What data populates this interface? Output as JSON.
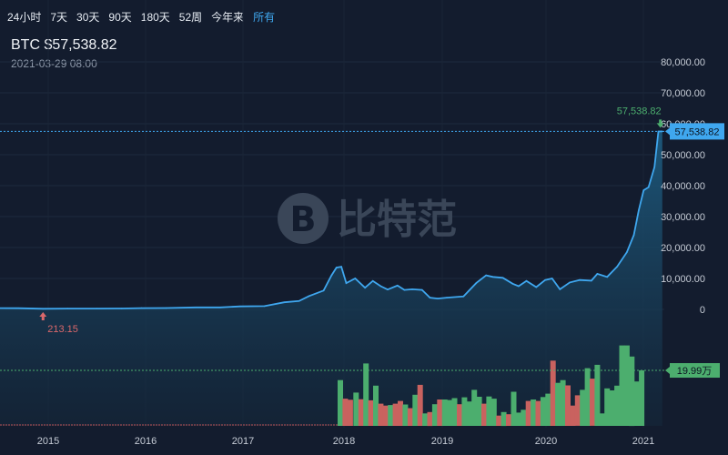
{
  "tabs": [
    {
      "label": "24小时",
      "active": false
    },
    {
      "label": "7天",
      "active": false
    },
    {
      "label": "30天",
      "active": false
    },
    {
      "label": "90天",
      "active": false
    },
    {
      "label": "180天",
      "active": false
    },
    {
      "label": "52周",
      "active": false
    },
    {
      "label": "今年来",
      "active": false
    },
    {
      "label": "所有",
      "active": true
    }
  ],
  "header": {
    "title": "BTC $57,538.82",
    "datetime": "2021-03-29 08:00"
  },
  "watermark": {
    "logo_glyph": "B",
    "text": "比特范"
  },
  "colors": {
    "background": "#131c2e",
    "line": "#3fa7ef",
    "area": "#1d5a7e",
    "up": "#4cae6e",
    "down": "#c9625f",
    "price_badge": "#3fa7ef",
    "volume_badge": "#4cae6e",
    "low_marker": "#d9686b",
    "high_marker": "#4cae6e"
  },
  "chart_data": {
    "type": "line",
    "title": "BTC $57,538.82",
    "x_tick_labels": [
      "2015",
      "2016",
      "2017",
      "2018",
      "2019",
      "2020",
      "2021"
    ],
    "y_tick_labels": [
      "0",
      "10,000.00",
      "20,000.00",
      "30,000.00",
      "40,000.00",
      "50,000.00",
      "60,000.00",
      "70,000.00",
      "80,000.00"
    ],
    "ylim": [
      0,
      80000
    ],
    "series": [
      {
        "values": [
          [
            2014.5,
            400
          ],
          [
            2014.7,
            380
          ],
          [
            2014.95,
            213
          ],
          [
            2015.2,
            250
          ],
          [
            2015.5,
            270
          ],
          [
            2015.75,
            300
          ],
          [
            2015.95,
            420
          ],
          [
            2016.2,
            430
          ],
          [
            2016.5,
            650
          ],
          [
            2016.75,
            640
          ],
          [
            2016.95,
            960
          ],
          [
            2017.2,
            1050
          ],
          [
            2017.4,
            2300
          ],
          [
            2017.55,
            2700
          ],
          [
            2017.65,
            4300
          ],
          [
            2017.8,
            6100
          ],
          [
            2017.88,
            11000
          ],
          [
            2017.93,
            13500
          ],
          [
            2017.98,
            13800
          ],
          [
            2018.03,
            8500
          ],
          [
            2018.12,
            10000
          ],
          [
            2018.22,
            7000
          ],
          [
            2018.3,
            9200
          ],
          [
            2018.38,
            7500
          ],
          [
            2018.45,
            6400
          ],
          [
            2018.55,
            7700
          ],
          [
            2018.62,
            6300
          ],
          [
            2018.7,
            6500
          ],
          [
            2018.8,
            6300
          ],
          [
            2018.88,
            3800
          ],
          [
            2018.96,
            3500
          ],
          [
            2019.05,
            3800
          ],
          [
            2019.22,
            4200
          ],
          [
            2019.35,
            8500
          ],
          [
            2019.45,
            11000
          ],
          [
            2019.52,
            10500
          ],
          [
            2019.62,
            10200
          ],
          [
            2019.72,
            8300
          ],
          [
            2019.78,
            7500
          ],
          [
            2019.86,
            9200
          ],
          [
            2019.96,
            7200
          ],
          [
            2020.05,
            9500
          ],
          [
            2020.12,
            10000
          ],
          [
            2020.2,
            6500
          ],
          [
            2020.3,
            8700
          ],
          [
            2020.4,
            9500
          ],
          [
            2020.52,
            9300
          ],
          [
            2020.58,
            11500
          ],
          [
            2020.68,
            10500
          ],
          [
            2020.78,
            13800
          ],
          [
            2020.88,
            18500
          ],
          [
            2020.95,
            24000
          ],
          [
            2021.0,
            32000
          ],
          [
            2021.05,
            38500
          ],
          [
            2021.1,
            39500
          ],
          [
            2021.16,
            46000
          ],
          [
            2021.2,
            57500
          ],
          [
            2021.24,
            57538.82
          ]
        ]
      }
    ],
    "volume": {
      "label": "19.99万",
      "bars": [
        {
          "x": 2017.97,
          "v": 16.5,
          "up": true
        },
        {
          "x": 2018.02,
          "v": 9.8,
          "up": false
        },
        {
          "x": 2018.07,
          "v": 9.4,
          "up": false
        },
        {
          "x": 2018.13,
          "v": 12.0,
          "up": true
        },
        {
          "x": 2018.18,
          "v": 9.6,
          "up": false
        },
        {
          "x": 2018.23,
          "v": 22.5,
          "up": true
        },
        {
          "x": 2018.28,
          "v": 9.2,
          "up": false
        },
        {
          "x": 2018.33,
          "v": 14.5,
          "up": true
        },
        {
          "x": 2018.38,
          "v": 8.0,
          "up": false
        },
        {
          "x": 2018.43,
          "v": 7.3,
          "up": false
        },
        {
          "x": 2018.48,
          "v": 7.5,
          "up": true
        },
        {
          "x": 2018.53,
          "v": 8.0,
          "up": false
        },
        {
          "x": 2018.58,
          "v": 9.0,
          "up": false
        },
        {
          "x": 2018.63,
          "v": 7.7,
          "up": true
        },
        {
          "x": 2018.68,
          "v": 6.4,
          "up": false
        },
        {
          "x": 2018.73,
          "v": 11.2,
          "up": true
        },
        {
          "x": 2018.78,
          "v": 14.8,
          "up": false
        },
        {
          "x": 2018.83,
          "v": 4.5,
          "up": true
        },
        {
          "x": 2018.88,
          "v": 5.0,
          "up": false
        },
        {
          "x": 2018.93,
          "v": 7.8,
          "up": true
        },
        {
          "x": 2018.98,
          "v": 9.5,
          "up": false
        },
        {
          "x": 2019.03,
          "v": 9.5,
          "up": true
        },
        {
          "x": 2019.08,
          "v": 9.3,
          "up": true
        },
        {
          "x": 2019.13,
          "v": 10.0,
          "up": true
        },
        {
          "x": 2019.18,
          "v": 7.8,
          "up": false
        },
        {
          "x": 2019.23,
          "v": 10.3,
          "up": true
        },
        {
          "x": 2019.28,
          "v": 8.8,
          "up": true
        },
        {
          "x": 2019.33,
          "v": 13.0,
          "up": true
        },
        {
          "x": 2019.38,
          "v": 10.5,
          "up": true
        },
        {
          "x": 2019.43,
          "v": 8.0,
          "up": false
        },
        {
          "x": 2019.48,
          "v": 10.6,
          "up": true
        },
        {
          "x": 2019.53,
          "v": 9.8,
          "up": true
        },
        {
          "x": 2019.58,
          "v": 3.7,
          "up": false
        },
        {
          "x": 2019.63,
          "v": 5.0,
          "up": true
        },
        {
          "x": 2019.68,
          "v": 4.2,
          "up": false
        },
        {
          "x": 2019.73,
          "v": 12.3,
          "up": true
        },
        {
          "x": 2019.78,
          "v": 4.8,
          "up": true
        },
        {
          "x": 2019.83,
          "v": 5.8,
          "up": true
        },
        {
          "x": 2019.88,
          "v": 9.0,
          "up": false
        },
        {
          "x": 2019.93,
          "v": 9.5,
          "up": true
        },
        {
          "x": 2019.98,
          "v": 9.0,
          "up": false
        },
        {
          "x": 2020.03,
          "v": 10.4,
          "up": true
        },
        {
          "x": 2020.08,
          "v": 11.6,
          "up": true
        },
        {
          "x": 2020.13,
          "v": 23.5,
          "up": false
        },
        {
          "x": 2020.18,
          "v": 15.5,
          "up": true
        },
        {
          "x": 2020.23,
          "v": 16.5,
          "up": true
        },
        {
          "x": 2020.28,
          "v": 14.6,
          "up": false
        },
        {
          "x": 2020.33,
          "v": 7.3,
          "up": false
        },
        {
          "x": 2020.38,
          "v": 11.0,
          "up": false
        },
        {
          "x": 2020.43,
          "v": 13.0,
          "up": true
        },
        {
          "x": 2020.48,
          "v": 20.8,
          "up": true
        },
        {
          "x": 2020.53,
          "v": 17.0,
          "up": false
        },
        {
          "x": 2020.58,
          "v": 22.0,
          "up": true
        },
        {
          "x": 2020.63,
          "v": 4.5,
          "up": true
        },
        {
          "x": 2020.68,
          "v": 13.5,
          "up": true
        },
        {
          "x": 2020.73,
          "v": 12.8,
          "up": true
        },
        {
          "x": 2020.78,
          "v": 14.5,
          "up": true
        },
        {
          "x": 2020.83,
          "v": 29.0,
          "up": true
        },
        {
          "x": 2020.88,
          "v": 29.0,
          "up": true
        },
        {
          "x": 2020.93,
          "v": 25.0,
          "up": true
        },
        {
          "x": 2020.98,
          "v": 16.0,
          "up": true
        },
        {
          "x": 2021.03,
          "v": 19.99,
          "up": true
        }
      ]
    },
    "markers": {
      "low": {
        "label": "213.15",
        "x": 2014.95,
        "value": 213.15
      },
      "high": {
        "label": "57,538.82",
        "x": 2021.22,
        "value": 57538.82
      }
    },
    "current_price_label": "57,538.82"
  }
}
